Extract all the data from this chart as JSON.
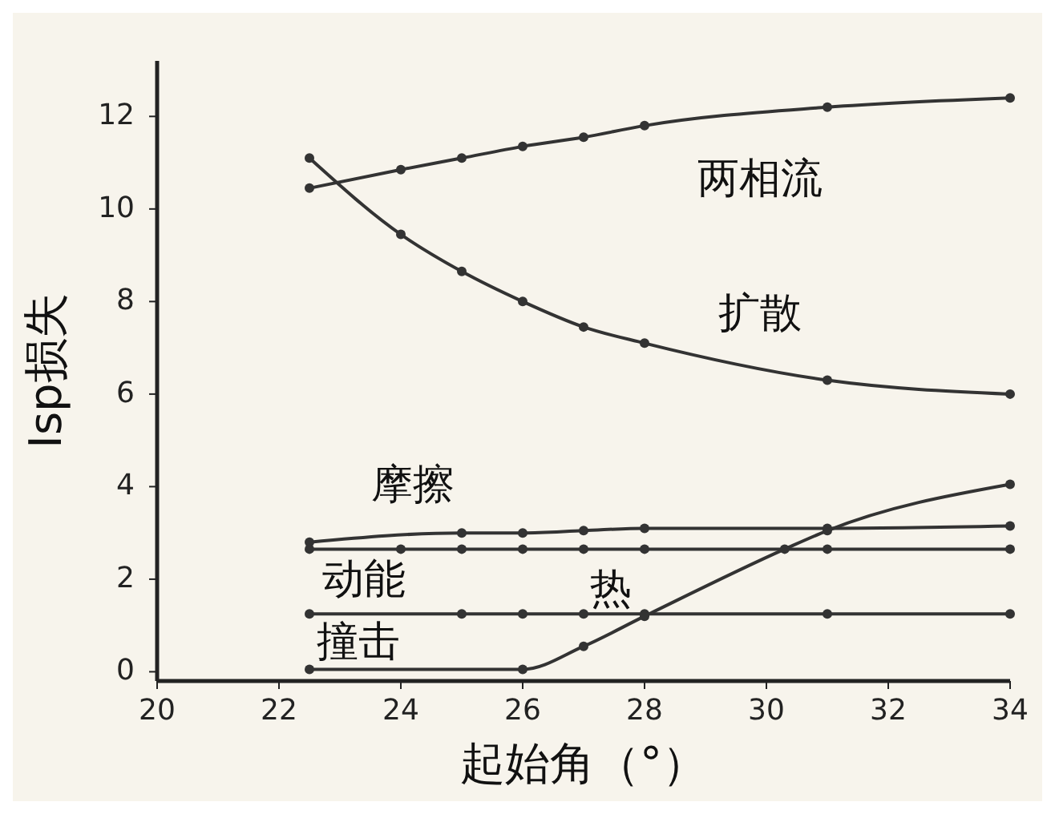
{
  "chart_data": {
    "type": "line",
    "xlabel": "起始角（°）",
    "ylabel": "Isp损失",
    "xlim": [
      20,
      34
    ],
    "ylim": [
      -0.2,
      13.2
    ],
    "xticks": [
      20,
      22,
      24,
      26,
      28,
      30,
      32,
      34
    ],
    "yticks": [
      0,
      2,
      4,
      6,
      8,
      10,
      12
    ],
    "grid": false,
    "marker": "circle",
    "line_style": "solid",
    "series": [
      {
        "name": "两相流",
        "color": "#333333",
        "x": [
          22.5,
          24,
          25,
          26,
          27,
          28,
          31,
          34
        ],
        "values": [
          10.45,
          10.85,
          11.1,
          11.35,
          11.55,
          11.8,
          12.2,
          12.4
        ]
      },
      {
        "name": "扩散",
        "color": "#333333",
        "x": [
          22.5,
          24,
          25,
          26,
          27,
          28,
          31,
          34
        ],
        "values": [
          11.1,
          9.45,
          8.65,
          8.0,
          7.45,
          7.1,
          6.3,
          6.0
        ]
      },
      {
        "name": "摩擦",
        "color": "#333333",
        "x": [
          22.5,
          25,
          26,
          27,
          28,
          31,
          34
        ],
        "values": [
          2.8,
          3.0,
          3.0,
          3.05,
          3.1,
          3.1,
          3.15
        ]
      },
      {
        "name": "动能",
        "color": "#333333",
        "x": [
          22.5,
          24,
          25,
          26,
          27,
          28,
          31,
          34
        ],
        "values": [
          2.65,
          2.65,
          2.65,
          2.65,
          2.65,
          2.65,
          2.65,
          2.65
        ]
      },
      {
        "name": "撞击",
        "color": "#333333",
        "x": [
          22.5,
          25,
          26,
          27,
          28,
          31,
          34
        ],
        "values": [
          1.25,
          1.25,
          1.25,
          1.25,
          1.25,
          1.25,
          1.25
        ]
      },
      {
        "name": "热",
        "color": "#333333",
        "x": [
          22.5,
          26,
          27,
          28,
          30.3,
          31,
          34
        ],
        "values": [
          0.05,
          0.05,
          0.55,
          1.2,
          2.65,
          3.05,
          4.05
        ]
      }
    ]
  }
}
